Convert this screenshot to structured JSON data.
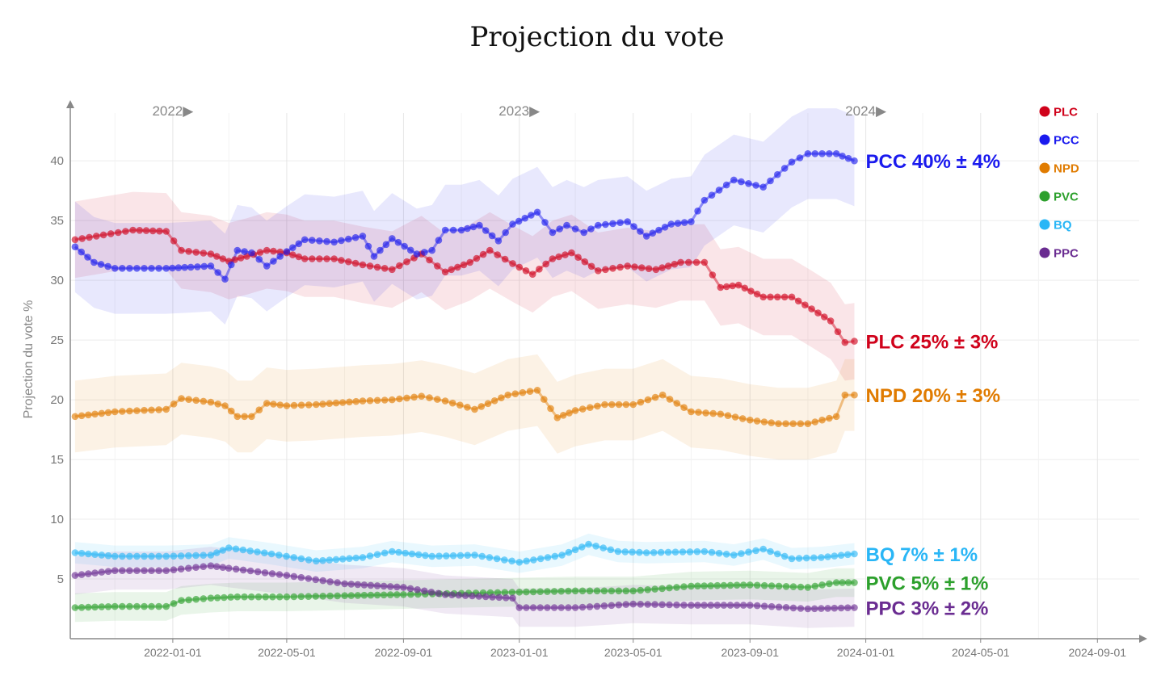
{
  "chart_data": {
    "type": "line",
    "title": "Projection du vote",
    "ylabel": "Projection du vote %",
    "ylim": [
      0,
      44
    ],
    "yticks": [
      "5",
      "10",
      "15",
      "20",
      "25",
      "30",
      "35",
      "40"
    ],
    "xlim": [
      "2021-09-15",
      "2024-10-15"
    ],
    "xticks": [
      "2022-01-01",
      "2022-05-01",
      "2022-09-01",
      "2023-01-01",
      "2023-05-01",
      "2023-09-01",
      "2024-01-01",
      "2024-05-01",
      "2024-09-01"
    ],
    "year_markers": [
      {
        "label": "2022▶",
        "date": "2022-01-01"
      },
      {
        "label": "2023▶",
        "date": "2023-01-01"
      },
      {
        "label": "2024▶",
        "date": "2024-01-01"
      }
    ],
    "grid": true,
    "legend_position": "top-right",
    "series": [
      {
        "name": "PLC",
        "color": "#d0021b",
        "end_label": "PLC 25% ± 3%",
        "points": [
          [
            "2021-09-20",
            33.4
          ],
          [
            "2021-10-20",
            33.8
          ],
          [
            "2021-11-20",
            34.2
          ],
          [
            "2021-12-25",
            34.1
          ],
          [
            "2022-01-10",
            32.5
          ],
          [
            "2022-02-10",
            32.2
          ],
          [
            "2022-03-01",
            31.6
          ],
          [
            "2022-03-20",
            32.0
          ],
          [
            "2022-04-10",
            32.5
          ],
          [
            "2022-05-01",
            32.3
          ],
          [
            "2022-05-20",
            31.8
          ],
          [
            "2022-06-20",
            31.8
          ],
          [
            "2022-07-20",
            31.3
          ],
          [
            "2022-08-20",
            30.9
          ],
          [
            "2022-09-20",
            32.2
          ],
          [
            "2022-10-15",
            30.7
          ],
          [
            "2022-11-10",
            31.5
          ],
          [
            "2022-12-01",
            32.5
          ],
          [
            "2022-12-25",
            31.4
          ],
          [
            "2023-01-15",
            30.5
          ],
          [
            "2023-02-05",
            31.8
          ],
          [
            "2023-02-25",
            32.3
          ],
          [
            "2023-03-25",
            30.8
          ],
          [
            "2023-04-25",
            31.2
          ],
          [
            "2023-05-25",
            30.9
          ],
          [
            "2023-06-20",
            31.5
          ],
          [
            "2023-07-15",
            31.5
          ],
          [
            "2023-08-01",
            29.4
          ],
          [
            "2023-08-20",
            29.6
          ],
          [
            "2023-09-15",
            28.6
          ],
          [
            "2023-10-15",
            28.6
          ],
          [
            "2023-11-05",
            27.6
          ],
          [
            "2023-11-25",
            26.6
          ],
          [
            "2023-12-10",
            24.8
          ],
          [
            "2023-12-20",
            24.9
          ]
        ]
      },
      {
        "name": "PCC",
        "color": "#1a1aee",
        "end_label": "PCC 40% ± 4%",
        "points": [
          [
            "2021-09-20",
            32.8
          ],
          [
            "2021-10-10",
            31.5
          ],
          [
            "2021-11-01",
            31.0
          ],
          [
            "2021-12-25",
            31.0
          ],
          [
            "2022-01-20",
            31.1
          ],
          [
            "2022-02-10",
            31.2
          ],
          [
            "2022-02-25",
            30.1
          ],
          [
            "2022-03-10",
            32.5
          ],
          [
            "2022-03-25",
            32.3
          ],
          [
            "2022-04-10",
            31.2
          ],
          [
            "2022-05-01",
            32.4
          ],
          [
            "2022-05-20",
            33.4
          ],
          [
            "2022-06-20",
            33.2
          ],
          [
            "2022-07-20",
            33.7
          ],
          [
            "2022-08-01",
            32.0
          ],
          [
            "2022-08-20",
            33.5
          ],
          [
            "2022-09-15",
            32.2
          ],
          [
            "2022-10-01",
            32.5
          ],
          [
            "2022-10-15",
            34.2
          ],
          [
            "2022-11-01",
            34.2
          ],
          [
            "2022-11-20",
            34.6
          ],
          [
            "2022-12-10",
            33.3
          ],
          [
            "2022-12-25",
            34.7
          ],
          [
            "2023-01-20",
            35.7
          ],
          [
            "2023-02-05",
            34.0
          ],
          [
            "2023-02-20",
            34.6
          ],
          [
            "2023-03-10",
            34.0
          ],
          [
            "2023-03-25",
            34.6
          ],
          [
            "2023-04-25",
            34.9
          ],
          [
            "2023-05-15",
            33.7
          ],
          [
            "2023-06-10",
            34.7
          ],
          [
            "2023-07-01",
            34.9
          ],
          [
            "2023-07-15",
            36.7
          ],
          [
            "2023-08-15",
            38.4
          ],
          [
            "2023-09-15",
            37.8
          ],
          [
            "2023-10-15",
            39.9
          ],
          [
            "2023-11-01",
            40.6
          ],
          [
            "2023-12-01",
            40.6
          ],
          [
            "2023-12-20",
            40.0
          ]
        ]
      },
      {
        "name": "NPD",
        "color": "#e07b00",
        "end_label": "NPD 20% ± 3%",
        "points": [
          [
            "2021-09-20",
            18.6
          ],
          [
            "2021-11-01",
            19.0
          ],
          [
            "2021-12-25",
            19.2
          ],
          [
            "2022-01-10",
            20.1
          ],
          [
            "2022-02-10",
            19.8
          ],
          [
            "2022-02-25",
            19.5
          ],
          [
            "2022-03-10",
            18.6
          ],
          [
            "2022-03-25",
            18.6
          ],
          [
            "2022-04-10",
            19.7
          ],
          [
            "2022-05-01",
            19.5
          ],
          [
            "2022-06-01",
            19.6
          ],
          [
            "2022-07-20",
            19.9
          ],
          [
            "2022-08-20",
            20.0
          ],
          [
            "2022-09-20",
            20.3
          ],
          [
            "2022-10-15",
            19.9
          ],
          [
            "2022-11-15",
            19.2
          ],
          [
            "2022-12-20",
            20.4
          ],
          [
            "2023-01-20",
            20.8
          ],
          [
            "2023-02-10",
            18.5
          ],
          [
            "2023-03-01",
            19.1
          ],
          [
            "2023-04-01",
            19.6
          ],
          [
            "2023-05-01",
            19.6
          ],
          [
            "2023-06-01",
            20.4
          ],
          [
            "2023-07-01",
            19.0
          ],
          [
            "2023-08-01",
            18.8
          ],
          [
            "2023-09-01",
            18.3
          ],
          [
            "2023-10-01",
            18.0
          ],
          [
            "2023-11-01",
            18.0
          ],
          [
            "2023-12-01",
            18.6
          ],
          [
            "2023-12-10",
            20.4
          ],
          [
            "2023-12-20",
            20.4
          ]
        ]
      },
      {
        "name": "PVC",
        "color": "#2ca02c",
        "end_label": "PVC 5% ± 1%",
        "points": [
          [
            "2021-09-20",
            2.6
          ],
          [
            "2021-11-01",
            2.7
          ],
          [
            "2021-12-25",
            2.7
          ],
          [
            "2022-01-10",
            3.2
          ],
          [
            "2022-02-10",
            3.4
          ],
          [
            "2022-03-10",
            3.5
          ],
          [
            "2022-05-01",
            3.5
          ],
          [
            "2022-07-01",
            3.6
          ],
          [
            "2022-09-01",
            3.7
          ],
          [
            "2022-11-01",
            3.8
          ],
          [
            "2023-01-01",
            3.9
          ],
          [
            "2023-03-01",
            4.0
          ],
          [
            "2023-05-01",
            4.0
          ],
          [
            "2023-07-01",
            4.4
          ],
          [
            "2023-09-01",
            4.5
          ],
          [
            "2023-11-01",
            4.3
          ],
          [
            "2023-12-01",
            4.7
          ],
          [
            "2023-12-20",
            4.7
          ]
        ]
      },
      {
        "name": "BQ",
        "color": "#29b6f6",
        "end_label": "BQ 7% ± 1%",
        "points": [
          [
            "2021-09-20",
            7.2
          ],
          [
            "2021-11-01",
            6.9
          ],
          [
            "2021-12-25",
            6.9
          ],
          [
            "2022-02-10",
            7.0
          ],
          [
            "2022-03-01",
            7.6
          ],
          [
            "2022-04-15",
            7.1
          ],
          [
            "2022-06-01",
            6.5
          ],
          [
            "2022-07-20",
            6.8
          ],
          [
            "2022-08-20",
            7.3
          ],
          [
            "2022-10-01",
            6.9
          ],
          [
            "2022-11-15",
            7.0
          ],
          [
            "2023-01-01",
            6.4
          ],
          [
            "2023-02-15",
            7.0
          ],
          [
            "2023-03-15",
            7.9
          ],
          [
            "2023-04-15",
            7.3
          ],
          [
            "2023-05-15",
            7.2
          ],
          [
            "2023-07-15",
            7.3
          ],
          [
            "2023-08-15",
            7.0
          ],
          [
            "2023-09-15",
            7.5
          ],
          [
            "2023-10-15",
            6.7
          ],
          [
            "2023-11-15",
            6.8
          ],
          [
            "2023-12-20",
            7.1
          ]
        ]
      },
      {
        "name": "PPC",
        "color": "#6a2c91",
        "end_label": "PPC 3% ± 2%",
        "points": [
          [
            "2021-09-20",
            5.3
          ],
          [
            "2021-11-01",
            5.7
          ],
          [
            "2021-12-25",
            5.7
          ],
          [
            "2022-02-10",
            6.1
          ],
          [
            "2022-03-01",
            5.9
          ],
          [
            "2022-05-01",
            5.3
          ],
          [
            "2022-07-01",
            4.6
          ],
          [
            "2022-09-01",
            4.3
          ],
          [
            "2022-10-15",
            3.7
          ],
          [
            "2022-12-25",
            3.4
          ],
          [
            "2023-01-01",
            2.6
          ],
          [
            "2023-03-01",
            2.6
          ],
          [
            "2023-05-01",
            2.9
          ],
          [
            "2023-07-01",
            2.8
          ],
          [
            "2023-09-01",
            2.8
          ],
          [
            "2023-11-01",
            2.5
          ],
          [
            "2023-12-20",
            2.6
          ]
        ]
      }
    ]
  }
}
